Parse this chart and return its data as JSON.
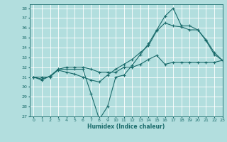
{
  "xlabel": "Humidex (Indice chaleur)",
  "background_color": "#b2dede",
  "grid_color": "#ffffff",
  "line_color": "#1a6b6b",
  "xlim": [
    -0.5,
    23
  ],
  "ylim": [
    27,
    38.4
  ],
  "xticks": [
    0,
    1,
    2,
    3,
    4,
    5,
    6,
    7,
    8,
    9,
    10,
    11,
    12,
    13,
    14,
    15,
    16,
    17,
    18,
    19,
    20,
    21,
    22,
    23
  ],
  "yticks": [
    27,
    28,
    29,
    30,
    31,
    32,
    33,
    34,
    35,
    36,
    37,
    38
  ],
  "line1_y": [
    31.0,
    30.7,
    31.1,
    31.8,
    31.8,
    31.8,
    31.8,
    29.3,
    26.7,
    28.0,
    31.0,
    31.2,
    32.2,
    33.3,
    34.4,
    35.8,
    37.2,
    38.0,
    36.2,
    36.2,
    35.8,
    34.7,
    33.3,
    32.7
  ],
  "line2_y": [
    31.0,
    30.8,
    31.1,
    31.7,
    31.5,
    31.3,
    31.0,
    30.7,
    30.5,
    31.2,
    31.8,
    32.3,
    32.8,
    33.5,
    34.2,
    35.7,
    36.5,
    36.2,
    36.1,
    35.8,
    35.8,
    34.8,
    33.5,
    32.7
  ],
  "line3_y": [
    31.0,
    31.0,
    31.0,
    31.8,
    32.0,
    32.0,
    32.0,
    31.8,
    31.5,
    31.5,
    31.5,
    32.0,
    32.0,
    32.3,
    32.8,
    33.2,
    32.3,
    32.5,
    32.5,
    32.5,
    32.5,
    32.5,
    32.5,
    32.7
  ]
}
